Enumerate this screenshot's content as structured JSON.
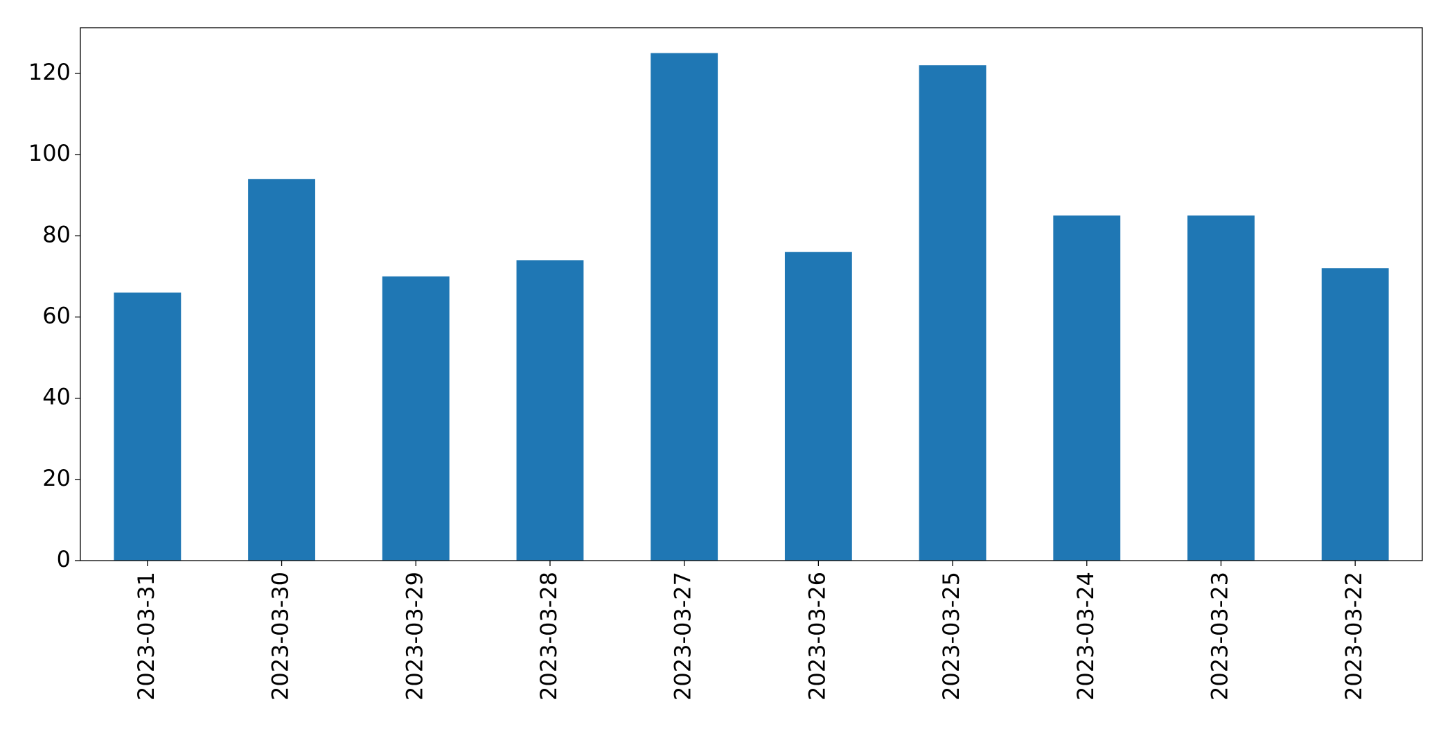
{
  "chart_data": {
    "type": "bar",
    "categories": [
      "2023-03-31",
      "2023-03-30",
      "2023-03-29",
      "2023-03-28",
      "2023-03-27",
      "2023-03-26",
      "2023-03-25",
      "2023-03-24",
      "2023-03-23",
      "2023-03-22"
    ],
    "values": [
      66,
      94,
      70,
      74,
      125,
      76,
      122,
      85,
      85,
      72
    ],
    "color": "#1f77b4",
    "ylim": [
      0,
      131.25
    ],
    "yticks": [
      0,
      20,
      40,
      60,
      80,
      100,
      120
    ],
    "grid": false
  }
}
